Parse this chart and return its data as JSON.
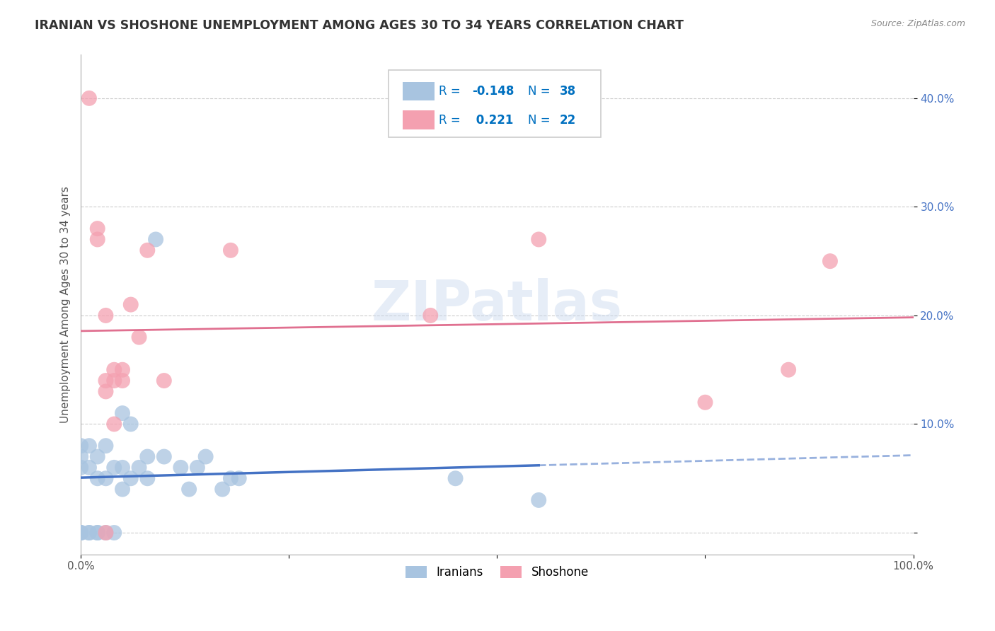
{
  "title": "IRANIAN VS SHOSHONE UNEMPLOYMENT AMONG AGES 30 TO 34 YEARS CORRELATION CHART",
  "source": "Source: ZipAtlas.com",
  "ylabel": "Unemployment Among Ages 30 to 34 years",
  "xlim": [
    0,
    1.0
  ],
  "ylim": [
    -0.02,
    0.44
  ],
  "xticks": [
    0.0,
    0.25,
    0.5,
    0.75,
    1.0
  ],
  "xticklabels": [
    "0.0%",
    "",
    "",
    "",
    "100.0%"
  ],
  "yticks": [
    0.0,
    0.1,
    0.2,
    0.3,
    0.4
  ],
  "yticklabels": [
    "",
    "10.0%",
    "20.0%",
    "30.0%",
    "40.0%"
  ],
  "iranian_color": "#a8c4e0",
  "shoshone_color": "#f4a0b0",
  "iranian_line_color": "#4472c4",
  "shoshone_line_color": "#e07090",
  "watermark": "ZIPatlas",
  "legend_R_color": "#0070c0",
  "iranians_x": [
    0.0,
    0.0,
    0.0,
    0.0,
    0.0,
    0.0,
    0.01,
    0.01,
    0.01,
    0.01,
    0.02,
    0.02,
    0.02,
    0.02,
    0.03,
    0.03,
    0.03,
    0.04,
    0.04,
    0.05,
    0.05,
    0.05,
    0.06,
    0.06,
    0.07,
    0.08,
    0.08,
    0.09,
    0.1,
    0.12,
    0.13,
    0.14,
    0.15,
    0.17,
    0.18,
    0.19,
    0.45,
    0.55
  ],
  "iranians_y": [
    0.0,
    0.0,
    0.0,
    0.06,
    0.07,
    0.08,
    0.0,
    0.0,
    0.06,
    0.08,
    0.0,
    0.0,
    0.05,
    0.07,
    0.0,
    0.05,
    0.08,
    0.0,
    0.06,
    0.04,
    0.06,
    0.11,
    0.05,
    0.1,
    0.06,
    0.05,
    0.07,
    0.27,
    0.07,
    0.06,
    0.04,
    0.06,
    0.07,
    0.04,
    0.05,
    0.05,
    0.05,
    0.03
  ],
  "shoshone_x": [
    0.01,
    0.02,
    0.02,
    0.03,
    0.03,
    0.03,
    0.04,
    0.04,
    0.04,
    0.05,
    0.05,
    0.06,
    0.07,
    0.08,
    0.1,
    0.18,
    0.42,
    0.55,
    0.75,
    0.85,
    0.9,
    0.03
  ],
  "shoshone_y": [
    0.4,
    0.27,
    0.28,
    0.0,
    0.13,
    0.14,
    0.1,
    0.14,
    0.15,
    0.14,
    0.15,
    0.21,
    0.18,
    0.26,
    0.14,
    0.26,
    0.2,
    0.27,
    0.12,
    0.15,
    0.25,
    0.2
  ]
}
